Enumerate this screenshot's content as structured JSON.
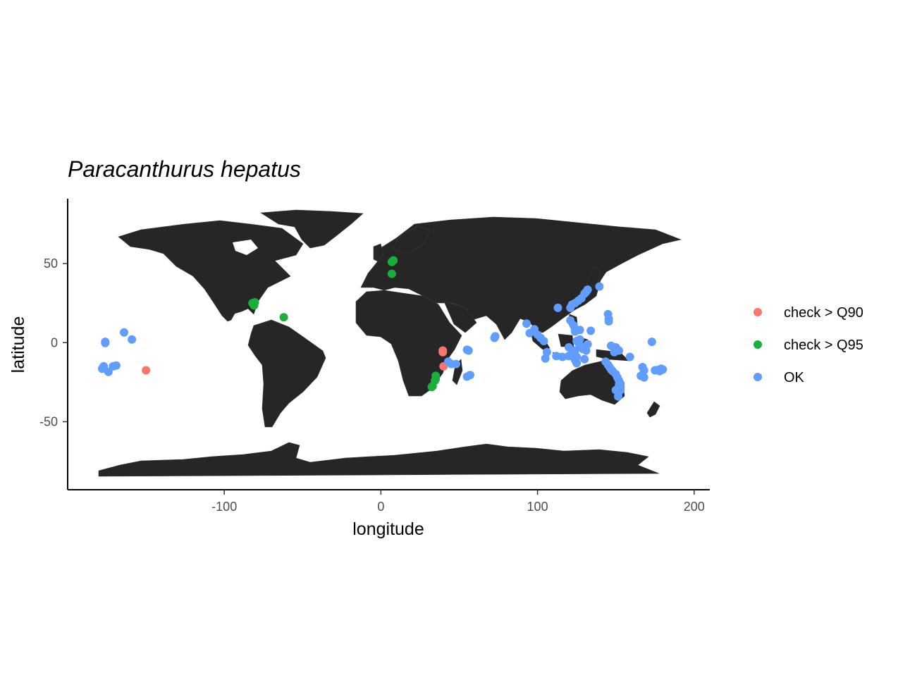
{
  "chart_data": {
    "type": "scatter",
    "title": "Paracanthurus hepatus",
    "xlabel": "longitude",
    "ylabel": "latitude",
    "xlim": [
      -200,
      210
    ],
    "ylim": [
      -93,
      91
    ],
    "x_ticks": [
      -100,
      0,
      100,
      200
    ],
    "y_ticks": [
      50,
      0,
      -50
    ],
    "x_tick_labels": [
      "-100",
      "0",
      "100",
      "200"
    ],
    "y_tick_labels": [
      "50",
      "0",
      "-50"
    ],
    "grid": false,
    "legend_position": "right",
    "background": "world-map",
    "series": [
      {
        "name": "check > Q90",
        "color": "#F8766D",
        "points": [
          [
            -150,
            -17.5
          ],
          [
            39.5,
            -5
          ],
          [
            39.5,
            -6
          ],
          [
            40,
            -15
          ]
        ]
      },
      {
        "name": "check > Q95",
        "color": "#1AAF3B",
        "points": [
          [
            7,
            51
          ],
          [
            8,
            52
          ],
          [
            7,
            43.5
          ],
          [
            -81,
            24
          ],
          [
            -80.5,
            25.5
          ],
          [
            -82,
            25
          ],
          [
            -81,
            23.5
          ],
          [
            -62,
            16
          ],
          [
            35,
            -21
          ],
          [
            35,
            -23
          ],
          [
            34.5,
            -24
          ],
          [
            33,
            -27.5
          ],
          [
            32.5,
            -28
          ]
        ]
      },
      {
        "name": "OK",
        "color": "#619CFF",
        "points": [
          [
            -178,
            -16.5
          ],
          [
            -177,
            -15
          ],
          [
            -176,
            0.5
          ],
          [
            -176,
            -0.2
          ],
          [
            -174,
            -18.5
          ],
          [
            -171,
            -15
          ],
          [
            -169,
            -14.5
          ],
          [
            -164,
            6.5
          ],
          [
            -159,
            2
          ],
          [
            43,
            -12
          ],
          [
            45,
            -13.5
          ],
          [
            48,
            -13.5
          ],
          [
            55,
            -4.5
          ],
          [
            56,
            -5
          ],
          [
            55,
            -21.5
          ],
          [
            57,
            -20.5
          ],
          [
            73,
            4
          ],
          [
            72.5,
            3
          ],
          [
            93,
            12
          ],
          [
            95,
            6
          ],
          [
            98,
            8.5
          ],
          [
            100,
            5
          ],
          [
            102,
            3
          ],
          [
            104,
            1
          ],
          [
            106,
            -6
          ],
          [
            105,
            -10
          ],
          [
            112,
            -8.5
          ],
          [
            113,
            22
          ],
          [
            116,
            -9
          ],
          [
            120,
            -8.5
          ],
          [
            121,
            22
          ],
          [
            122,
            24
          ],
          [
            124,
            25
          ],
          [
            126,
            26.5
          ],
          [
            128,
            28
          ],
          [
            130,
            31
          ],
          [
            131,
            32
          ],
          [
            132,
            33.5
          ],
          [
            139.5,
            35.5
          ],
          [
            121,
            14
          ],
          [
            123,
            11
          ],
          [
            124,
            7
          ],
          [
            125,
            1
          ],
          [
            126,
            0
          ],
          [
            127,
            2
          ],
          [
            128,
            -2.5
          ],
          [
            130,
            -3
          ],
          [
            131,
            -5
          ],
          [
            125,
            -9
          ],
          [
            124,
            -11
          ],
          [
            125,
            -13
          ],
          [
            130,
            -10.5
          ],
          [
            134,
            7.5
          ],
          [
            145.5,
            15
          ],
          [
            145.5,
            13.5
          ],
          [
            145,
            18
          ],
          [
            147,
            -2
          ],
          [
            150,
            -3
          ],
          [
            149,
            -6
          ],
          [
            152,
            -5
          ],
          [
            143.5,
            -12
          ],
          [
            145,
            -14
          ],
          [
            146,
            -15.5
          ],
          [
            147,
            -17
          ],
          [
            148,
            -18
          ],
          [
            150,
            -20
          ],
          [
            151,
            -22
          ],
          [
            152,
            -24
          ],
          [
            153,
            -26
          ],
          [
            153,
            -28
          ],
          [
            152,
            -31
          ],
          [
            151.5,
            -34
          ],
          [
            159,
            -9
          ],
          [
            167,
            -15.5
          ],
          [
            168,
            -17.5
          ],
          [
            166,
            -21
          ],
          [
            168,
            -22
          ],
          [
            173,
            0.5
          ],
          [
            175,
            -17.5
          ],
          [
            177,
            -17.2
          ],
          [
            178,
            -18
          ],
          [
            179,
            -16.5
          ],
          [
            180,
            -17
          ],
          [
            150,
            -30
          ],
          [
            152,
            -27
          ],
          [
            153,
            -30
          ],
          [
            124,
            -5
          ],
          [
            122,
            -5
          ],
          [
            129,
            -4
          ],
          [
            132,
            -1
          ],
          [
            120,
            -3
          ],
          [
            127,
            8
          ]
        ]
      }
    ]
  }
}
